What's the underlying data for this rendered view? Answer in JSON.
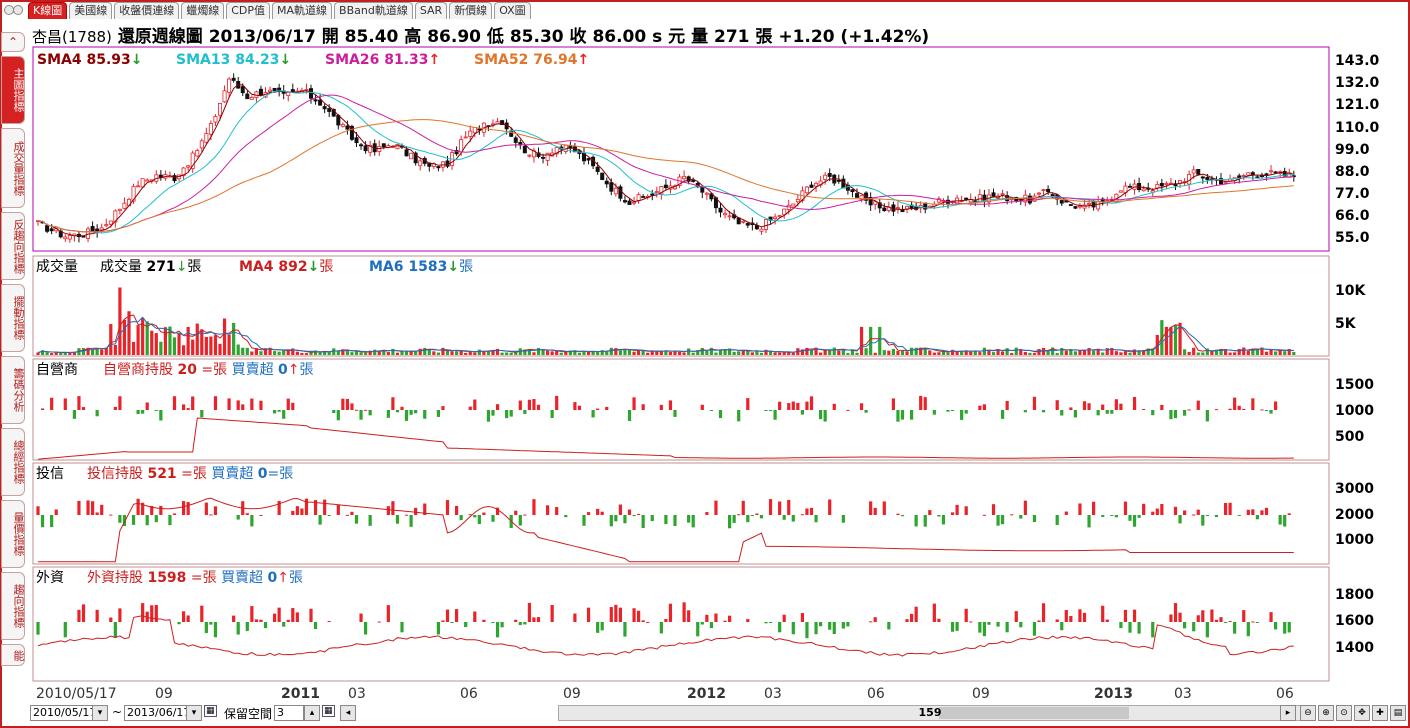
{
  "tabs": [
    "K線圖",
    "美國線",
    "收盤價連線",
    "蠟燭線",
    "CDP值",
    "MA軌道線",
    "BBand軌道線",
    "SAR",
    "新價線",
    "OX圖"
  ],
  "title": {
    "stock": "杏昌(1788)",
    "text": "還原週線圖  2013/06/17  開 85.40  高 86.90  低 85.30  收 86.00 s 元  量 271 張  +1.20 (+1.42%)"
  },
  "side_tabs": [
    "主圖指標",
    "成交量指標",
    "反趨向指標",
    "擺動指標",
    "籌碼分析",
    "總經指標",
    "量價指標",
    "趨向指標",
    "能"
  ],
  "colors": {
    "up": "#e8232a",
    "down": "#2ea52e",
    "sma4": "#8b0000",
    "sma13": "#1fbfcf",
    "sma26": "#cc1f9f",
    "sma52": "#e0752b",
    "ma4": "#cc1f1f",
    "ma6": "#1f6fc0"
  },
  "price_panel": {
    "legend": [
      {
        "name": "SMA4",
        "value": "85.93",
        "arrow": "↓",
        "color": "#8b0000",
        "arrow_color": "#2a9a2a"
      },
      {
        "name": "SMA13",
        "value": "84.23",
        "arrow": "↓",
        "color": "#1fbfcf",
        "arrow_color": "#2a9a2a"
      },
      {
        "name": "SMA26",
        "value": "81.33",
        "arrow": "↑",
        "color": "#cc1f9f",
        "arrow_color": "#e8232a"
      },
      {
        "name": "SMA52",
        "value": "76.94",
        "arrow": "↑",
        "color": "#e0752b",
        "arrow_color": "#e8232a"
      }
    ],
    "yticks": [
      "143.0",
      "132.0",
      "121.0",
      "110.0",
      "99.0",
      "88.0",
      "77.0",
      "66.0",
      "55.0"
    ]
  },
  "volume_panel": {
    "label": "成交量",
    "legend": [
      {
        "name": "成交量",
        "value": "271",
        "arrow": "↓",
        "unit": "張",
        "color": "#000000"
      },
      {
        "name": "MA4",
        "value": "892",
        "arrow": "↓",
        "unit": "張",
        "color": "#cc1f1f"
      },
      {
        "name": "MA6",
        "value": "1583",
        "arrow": "↓",
        "unit": "張",
        "color": "#1f6fc0"
      }
    ],
    "yticks": [
      "10K",
      "5K"
    ]
  },
  "dealer_panel": {
    "label": "自營商",
    "hold_name": "自營商持股",
    "hold_value": "20",
    "hold_sym": "=",
    "unit": "張",
    "trade_name": "買賣超",
    "trade_value": "0",
    "trade_sym": "↑",
    "yticks": [
      "1500",
      "1000",
      "500"
    ]
  },
  "trust_panel": {
    "label": "投信",
    "hold_name": "投信持股",
    "hold_value": "521",
    "hold_sym": "=",
    "unit": "張",
    "trade_name": "買賣超",
    "trade_value": "0",
    "trade_sym": "=",
    "yticks": [
      "3000",
      "2000",
      "1000"
    ]
  },
  "foreign_panel": {
    "label": "外資",
    "hold_name": "外資持股",
    "hold_value": "1598",
    "hold_sym": "=",
    "unit": "張",
    "trade_name": "買賣超",
    "trade_value": "0",
    "trade_sym": "↑",
    "yticks": [
      "1800",
      "1600",
      "1400"
    ]
  },
  "x_labels": [
    "2010/05/17",
    "09",
    "2011",
    "03",
    "06",
    "09",
    "2012",
    "03",
    "06",
    "09",
    "2013",
    "03",
    "06"
  ],
  "bottom": {
    "start": "2010/05/17",
    "tilde": "~",
    "end": "2013/06/17",
    "reserve_label": "保留空間",
    "reserve_value": "3",
    "scroll_value": "159"
  },
  "chart_data": {
    "type": "candlestick",
    "price": {
      "ylim": [
        55,
        143
      ],
      "points": [
        [
          0,
          62
        ],
        [
          6,
          56
        ],
        [
          10,
          57
        ],
        [
          14,
          60
        ],
        [
          18,
          70
        ],
        [
          22,
          82
        ],
        [
          26,
          86
        ],
        [
          30,
          85
        ],
        [
          34,
          95
        ],
        [
          38,
          110
        ],
        [
          42,
          134
        ],
        [
          46,
          125
        ],
        [
          50,
          128
        ],
        [
          54,
          125
        ],
        [
          58,
          128
        ],
        [
          62,
          122
        ],
        [
          66,
          112
        ],
        [
          70,
          102
        ],
        [
          74,
          98
        ],
        [
          78,
          102
        ],
        [
          82,
          95
        ],
        [
          86,
          90
        ],
        [
          90,
          92
        ],
        [
          94,
          105
        ],
        [
          98,
          112
        ],
        [
          102,
          113
        ],
        [
          106,
          100
        ],
        [
          110,
          95
        ],
        [
          114,
          100
        ],
        [
          118,
          98
        ],
        [
          122,
          90
        ],
        [
          126,
          80
        ],
        [
          130,
          73
        ],
        [
          134,
          76
        ],
        [
          138,
          80
        ],
        [
          142,
          85
        ],
        [
          146,
          78
        ],
        [
          150,
          68
        ],
        [
          154,
          62
        ],
        [
          158,
          60
        ],
        [
          162,
          65
        ],
        [
          166,
          72
        ],
        [
          170,
          82
        ],
        [
          174,
          85
        ],
        [
          178,
          80
        ],
        [
          182,
          72
        ],
        [
          186,
          70
        ],
        [
          190,
          69
        ],
        [
          194,
          70
        ],
        [
          198,
          73
        ],
        [
          202,
          75
        ],
        [
          206,
          74
        ],
        [
          210,
          76
        ],
        [
          214,
          75
        ],
        [
          218,
          74
        ],
        [
          222,
          78
        ],
        [
          226,
          72
        ],
        [
          230,
          70
        ],
        [
          234,
          72
        ],
        [
          238,
          80
        ],
        [
          242,
          80
        ],
        [
          246,
          80
        ],
        [
          250,
          82
        ],
        [
          254,
          87
        ],
        [
          258,
          84
        ],
        [
          262,
          83
        ],
        [
          266,
          87
        ],
        [
          270,
          87
        ],
        [
          274,
          86
        ]
      ]
    },
    "volume": {
      "ylim": [
        0,
        12000
      ]
    },
    "dealer": {
      "ylim": [
        0,
        2000
      ]
    },
    "trust": {
      "ylim": [
        0,
        3800
      ]
    },
    "foreign": {
      "ylim": [
        1280,
        1900
      ]
    }
  }
}
